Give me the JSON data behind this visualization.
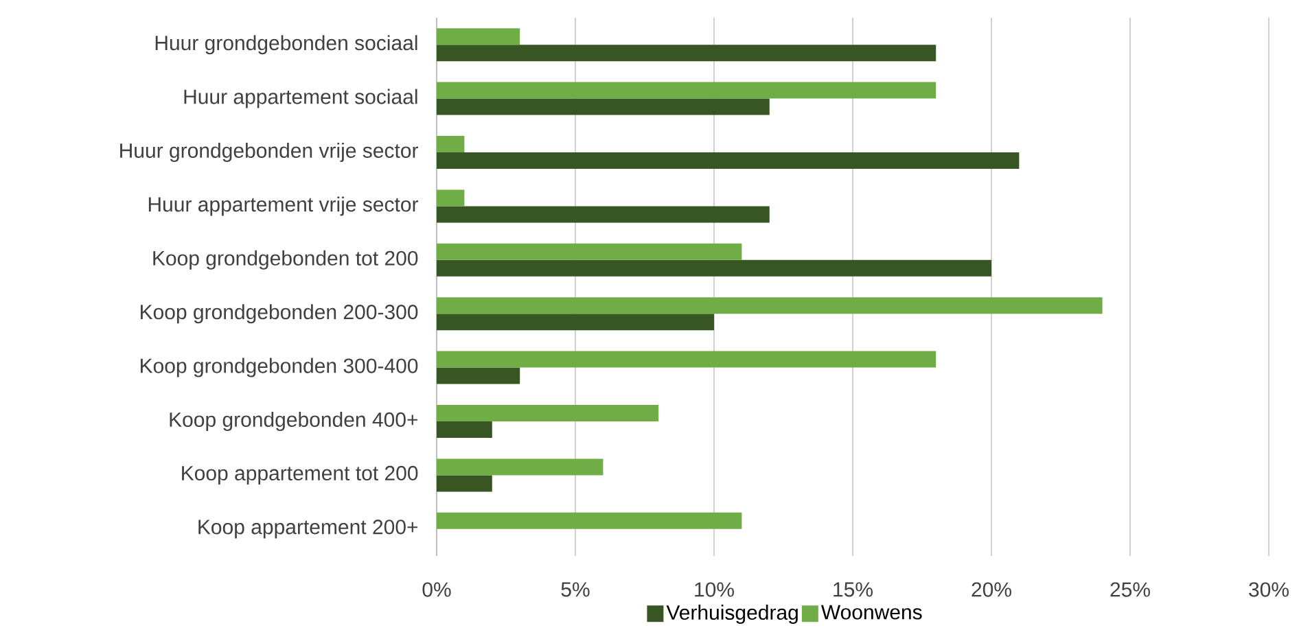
{
  "chart_data": {
    "type": "bar",
    "orientation": "horizontal",
    "categories": [
      "Huur grondgebonden sociaal",
      "Huur appartement sociaal",
      "Huur grondgebonden vrije sector",
      "Huur appartement vrije sector",
      "Koop grondgebonden tot 200",
      "Koop grondgebonden 200-300",
      "Koop grondgebonden 300-400",
      "Koop grondgebonden 400+",
      "Koop appartement tot 200",
      "Koop appartement 200+"
    ],
    "series": [
      {
        "name": "Verhuisgedrag",
        "color": "#375623",
        "values": [
          18,
          12,
          21,
          12,
          20,
          10,
          3,
          2,
          2,
          0
        ]
      },
      {
        "name": "Woonwens",
        "color": "#70ad47",
        "values": [
          3,
          18,
          1,
          1,
          11,
          24,
          18,
          8,
          6,
          11
        ]
      }
    ],
    "xlim": [
      0,
      30
    ],
    "xticks": [
      {
        "value": 0,
        "label": "0%"
      },
      {
        "value": 5,
        "label": "5%"
      },
      {
        "value": 10,
        "label": "10%"
      },
      {
        "value": 15,
        "label": "15%"
      },
      {
        "value": 20,
        "label": "20%"
      },
      {
        "value": 25,
        "label": "25%"
      },
      {
        "value": 30,
        "label": "30%"
      }
    ],
    "grid": "x",
    "legend": "bottom"
  }
}
